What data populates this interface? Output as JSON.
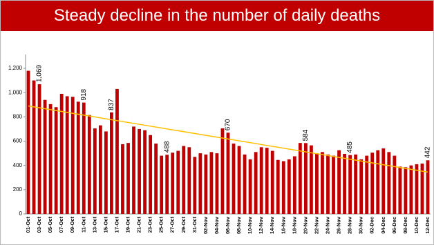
{
  "chart_data": {
    "type": "bar",
    "title": "Steady decline in the number of daily deaths",
    "categories": [
      "01-Oct",
      null,
      "03-Oct",
      null,
      "05-Oct",
      null,
      "07-Oct",
      null,
      "09-Oct",
      null,
      "11-Oct",
      null,
      "13-Oct",
      null,
      "15-Oct",
      null,
      "17-Oct",
      null,
      "19-Oct",
      null,
      "21-Oct",
      null,
      "23-Oct",
      null,
      "25-Oct",
      null,
      "27-Oct",
      null,
      "29-Oct",
      null,
      "31-Oct",
      null,
      "02-Nov",
      null,
      "04-Nov",
      null,
      "06-Nov",
      null,
      "08-Nov",
      null,
      "10-Nov",
      null,
      "12-Nov",
      null,
      "14-Nov",
      null,
      "16-Nov",
      null,
      "18-Nov",
      null,
      "20-Nov",
      null,
      "22-Nov",
      null,
      "24-Nov",
      null,
      "26-Nov",
      null,
      "28-Nov",
      null,
      "30-Nov",
      null,
      "02-Dec",
      null,
      "04-Dec",
      null,
      "06-Dec",
      null,
      "08-Dec",
      null,
      "10-Dec",
      null,
      "12-Dec"
    ],
    "values": [
      1180,
      1100,
      1069,
      940,
      905,
      880,
      990,
      970,
      965,
      925,
      918,
      815,
      705,
      730,
      680,
      837,
      1030,
      575,
      585,
      720,
      700,
      690,
      650,
      580,
      480,
      488,
      505,
      520,
      560,
      550,
      470,
      500,
      490,
      510,
      500,
      705,
      670,
      580,
      560,
      490,
      450,
      510,
      550,
      545,
      520,
      445,
      435,
      450,
      475,
      585,
      584,
      565,
      500,
      510,
      490,
      480,
      525,
      495,
      485,
      490,
      450,
      480,
      505,
      525,
      540,
      510,
      480,
      390,
      385,
      400,
      410,
      415,
      442
    ],
    "value_labels": [
      null,
      null,
      "1,069",
      null,
      null,
      null,
      null,
      null,
      null,
      null,
      "918",
      null,
      null,
      null,
      null,
      "837",
      null,
      null,
      null,
      null,
      null,
      null,
      null,
      null,
      null,
      "488",
      null,
      null,
      null,
      null,
      null,
      null,
      null,
      null,
      null,
      null,
      "670",
      null,
      null,
      null,
      null,
      null,
      null,
      null,
      null,
      null,
      null,
      null,
      null,
      null,
      "584",
      null,
      null,
      null,
      null,
      null,
      null,
      null,
      "485",
      null,
      null,
      null,
      null,
      null,
      null,
      null,
      null,
      null,
      null,
      null,
      null,
      null,
      "442"
    ],
    "color": "#c00000",
    "trendline": {
      "start": 890,
      "end": 345,
      "color": "#ffc000"
    },
    "ylim": [
      0,
      1200
    ],
    "yticks": [
      0,
      200,
      400,
      600,
      800,
      {
        "value": 1000,
        "label": "1,000"
      },
      {
        "value": 1200,
        "label": "1,200"
      }
    ]
  }
}
